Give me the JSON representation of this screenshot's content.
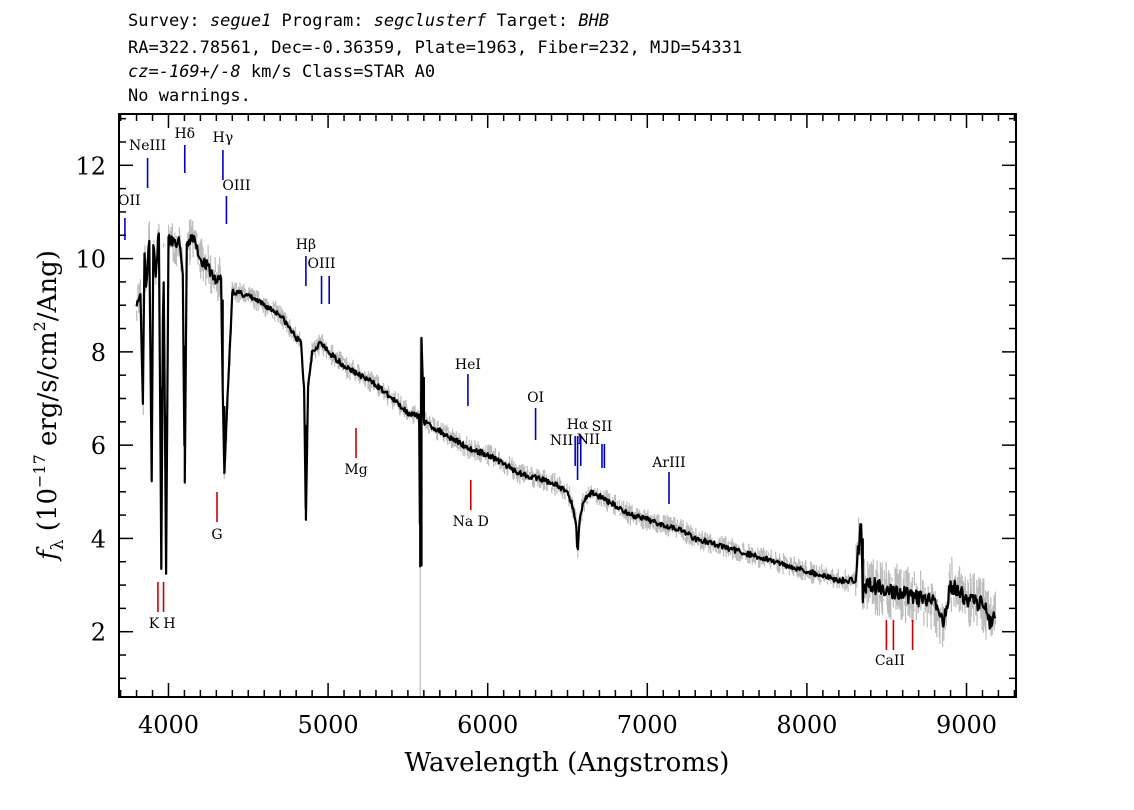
{
  "header": {
    "line1": [
      "Survey: ",
      "segue1",
      " Program: ",
      "segclusterf",
      " Target: ",
      "BHB"
    ],
    "line2": "RA=322.78561, Dec=-0.36359, Plate=1963, Fiber=232, MJD=54331",
    "line3": [
      "cz=",
      "-169+/-8",
      " km/s Class=STAR A0"
    ],
    "line4": "No warnings."
  },
  "chart_data": {
    "type": "line",
    "title": "",
    "xlabel": "Wavelength (Angstroms)",
    "ylabel": "f_λ (10^-17 erg/s/cm^2/Ang)",
    "xlim": [
      3690,
      9310
    ],
    "ylim": [
      0.6,
      13.1
    ],
    "xticks": [
      4000,
      5000,
      6000,
      7000,
      8000,
      9000
    ],
    "yticks": [
      2,
      4,
      6,
      8,
      10,
      12
    ],
    "grid": false,
    "series": [
      {
        "color": "#000000",
        "noise_color": "#bbbbbb",
        "x": [
          3800,
          3825,
          3840,
          3850,
          3860,
          3880,
          3895,
          3905,
          3920,
          3940,
          3955,
          3968,
          3985,
          4000,
          4050,
          4070,
          4090,
          4102,
          4115,
          4150,
          4200,
          4250,
          4300,
          4330,
          4340,
          4350,
          4400,
          4500,
          4600,
          4700,
          4800,
          4830,
          4850,
          4861,
          4875,
          4900,
          4950,
          5000,
          5100,
          5200,
          5300,
          5400,
          5500,
          5570,
          5577,
          5585,
          5600,
          5700,
          5800,
          5850,
          5900,
          6000,
          6100,
          6200,
          6300,
          6400,
          6450,
          6500,
          6530,
          6555,
          6563,
          6575,
          6600,
          6650,
          6700,
          6750,
          6800,
          6900,
          7000,
          7100,
          7200,
          7300,
          7400,
          7500,
          7600,
          7700,
          7800,
          7900,
          8000,
          8100,
          8200,
          8300,
          8340,
          8350,
          8360,
          8400,
          8500,
          8600,
          8700,
          8800,
          8850,
          8900,
          9000,
          9100,
          9150,
          9180
        ],
        "y": [
          9.1,
          9.2,
          7.0,
          10.2,
          9.4,
          10.5,
          5.3,
          10.4,
          9.6,
          10.6,
          3.4,
          10.4,
          3.3,
          10.4,
          10.3,
          10.4,
          9.6,
          5.2,
          10.2,
          10.5,
          10.0,
          9.8,
          9.5,
          9.6,
          7.2,
          5.4,
          9.3,
          9.2,
          9.0,
          8.8,
          8.3,
          8.2,
          7.2,
          4.4,
          7.3,
          8.0,
          8.2,
          8.0,
          7.7,
          7.5,
          7.3,
          7.0,
          6.7,
          6.6,
          3.4,
          8.3,
          6.5,
          6.3,
          6.1,
          6.0,
          5.9,
          5.8,
          5.6,
          5.4,
          5.3,
          5.2,
          5.1,
          5.0,
          4.7,
          4.3,
          3.6,
          4.4,
          4.8,
          5.0,
          4.9,
          4.8,
          4.7,
          4.5,
          4.4,
          4.3,
          4.2,
          4.0,
          3.9,
          3.8,
          3.7,
          3.6,
          3.5,
          3.4,
          3.3,
          3.2,
          3.1,
          3.1,
          4.3,
          2.8,
          3.0,
          3.0,
          2.9,
          2.8,
          2.7,
          2.6,
          2.2,
          3.0,
          2.7,
          2.6,
          2.2,
          2.4
        ]
      }
    ],
    "line_labels": [
      {
        "label": "OII",
        "x": 3727,
        "color": "#0000cc",
        "kind": "emission"
      },
      {
        "label": "NeIII",
        "x": 3869,
        "color": "#0000cc",
        "kind": "emission"
      },
      {
        "label": "Hδ",
        "x": 4102,
        "color": "#0000cc",
        "kind": "emission"
      },
      {
        "label": "Hγ",
        "x": 4341,
        "color": "#0000cc",
        "kind": "emission"
      },
      {
        "label": "OIII",
        "x": 4363,
        "color": "#0000cc",
        "kind": "emission"
      },
      {
        "label": "Hβ",
        "x": 4861,
        "color": "#0000cc",
        "kind": "emission"
      },
      {
        "label": "OIII",
        "x": 4959,
        "color": "#0000cc",
        "kind": "emission"
      },
      {
        "label": "OIII",
        "x": 5007,
        "color": "#0000cc",
        "kind": "emission"
      },
      {
        "label": "HeI",
        "x": 5876,
        "color": "#0000cc",
        "kind": "emission"
      },
      {
        "label": "OI",
        "x": 6300,
        "color": "#0000cc",
        "kind": "emission"
      },
      {
        "label": "NII",
        "x": 6548,
        "color": "#0000cc",
        "kind": "emission"
      },
      {
        "label": "Hα",
        "x": 6563,
        "color": "#0000cc",
        "kind": "emission"
      },
      {
        "label": "NII",
        "x": 6583,
        "color": "#0000cc",
        "kind": "emission"
      },
      {
        "label": "SII",
        "x": 6716,
        "color": "#0000cc",
        "kind": "emission"
      },
      {
        "label": "SII",
        "x": 6731,
        "color": "#0000cc",
        "kind": "emission"
      },
      {
        "label": "ArIII",
        "x": 7136,
        "color": "#0000cc",
        "kind": "emission"
      },
      {
        "label": "K",
        "x": 3934,
        "color": "#cc0000",
        "kind": "absorption"
      },
      {
        "label": "H",
        "x": 3969,
        "color": "#cc0000",
        "kind": "absorption"
      },
      {
        "label": "G",
        "x": 4304,
        "color": "#cc0000",
        "kind": "absorption"
      },
      {
        "label": "Mg",
        "x": 5175,
        "color": "#cc0000",
        "kind": "absorption"
      },
      {
        "label": "Na D",
        "x": 5894,
        "color": "#cc0000",
        "kind": "absorption"
      },
      {
        "label": "CaII",
        "x": 8498,
        "color": "#cc0000",
        "kind": "absorption"
      },
      {
        "label": "CaII",
        "x": 8542,
        "color": "#cc0000",
        "kind": "absorption"
      },
      {
        "label": "CaII",
        "x": 8662,
        "color": "#cc0000",
        "kind": "absorption"
      }
    ]
  }
}
